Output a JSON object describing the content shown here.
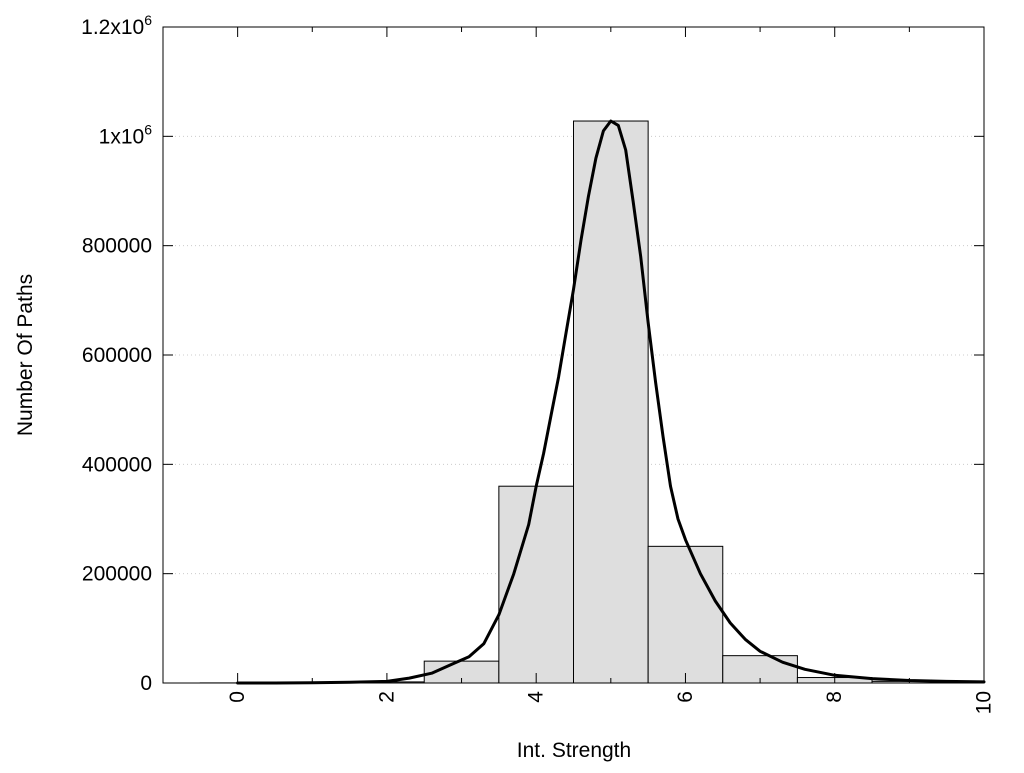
{
  "chart_data": {
    "type": "bar",
    "subtype": "histogram-with-fit-curve",
    "title": "",
    "xlabel": "Int. Strength",
    "ylabel": "Number Of Paths",
    "xlim": [
      -1,
      10
    ],
    "ylim": [
      0,
      1200000
    ],
    "grid": true,
    "legend": "none",
    "x_ticks": [
      {
        "value": 0,
        "label": "0"
      },
      {
        "value": 2,
        "label": "2"
      },
      {
        "value": 4,
        "label": "4"
      },
      {
        "value": 6,
        "label": "6"
      },
      {
        "value": 8,
        "label": "8"
      },
      {
        "value": 10,
        "label": "10"
      }
    ],
    "y_ticks": [
      {
        "value": 0,
        "label": "0"
      },
      {
        "value": 200000,
        "label": "200000"
      },
      {
        "value": 400000,
        "label": "400000"
      },
      {
        "value": 600000,
        "label": "600000"
      },
      {
        "value": 800000,
        "label": "800000"
      },
      {
        "value": 1000000,
        "label": "1x10",
        "sup": "6"
      },
      {
        "value": 1200000,
        "label": "1.2x10",
        "sup": "6"
      }
    ],
    "bars": {
      "bin_width": 1,
      "centers": [
        0,
        1,
        2,
        3,
        4,
        5,
        6,
        7,
        8,
        9,
        10
      ],
      "values": [
        200,
        500,
        2000,
        40000,
        360000,
        1028000,
        250000,
        50000,
        10000,
        3000,
        1000
      ]
    },
    "curve": {
      "x": [
        0,
        0.5,
        1,
        1.5,
        2,
        2.3,
        2.6,
        2.9,
        3.1,
        3.3,
        3.5,
        3.7,
        3.9,
        4.0,
        4.1,
        4.2,
        4.3,
        4.4,
        4.5,
        4.6,
        4.7,
        4.8,
        4.9,
        5.0,
        5.1,
        5.2,
        5.3,
        5.4,
        5.5,
        5.6,
        5.7,
        5.8,
        5.9,
        6.0,
        6.2,
        6.4,
        6.6,
        6.8,
        7.0,
        7.3,
        7.6,
        8.0,
        8.5,
        9.0,
        9.5,
        10.0
      ],
      "y": [
        0,
        0,
        500,
        1500,
        3000,
        9000,
        18000,
        36000,
        48000,
        72000,
        125000,
        200000,
        290000,
        360000,
        420000,
        490000,
        560000,
        640000,
        720000,
        810000,
        890000,
        960000,
        1010000,
        1028000,
        1020000,
        975000,
        880000,
        780000,
        660000,
        550000,
        450000,
        360000,
        300000,
        262000,
        200000,
        150000,
        110000,
        80000,
        58000,
        38000,
        25000,
        14000,
        8000,
        4500,
        3000,
        2000
      ],
      "color": "#000000"
    },
    "colors": {
      "bar_fill": "#dedede",
      "bar_stroke": "#000000",
      "grid": "#cccccc"
    }
  }
}
